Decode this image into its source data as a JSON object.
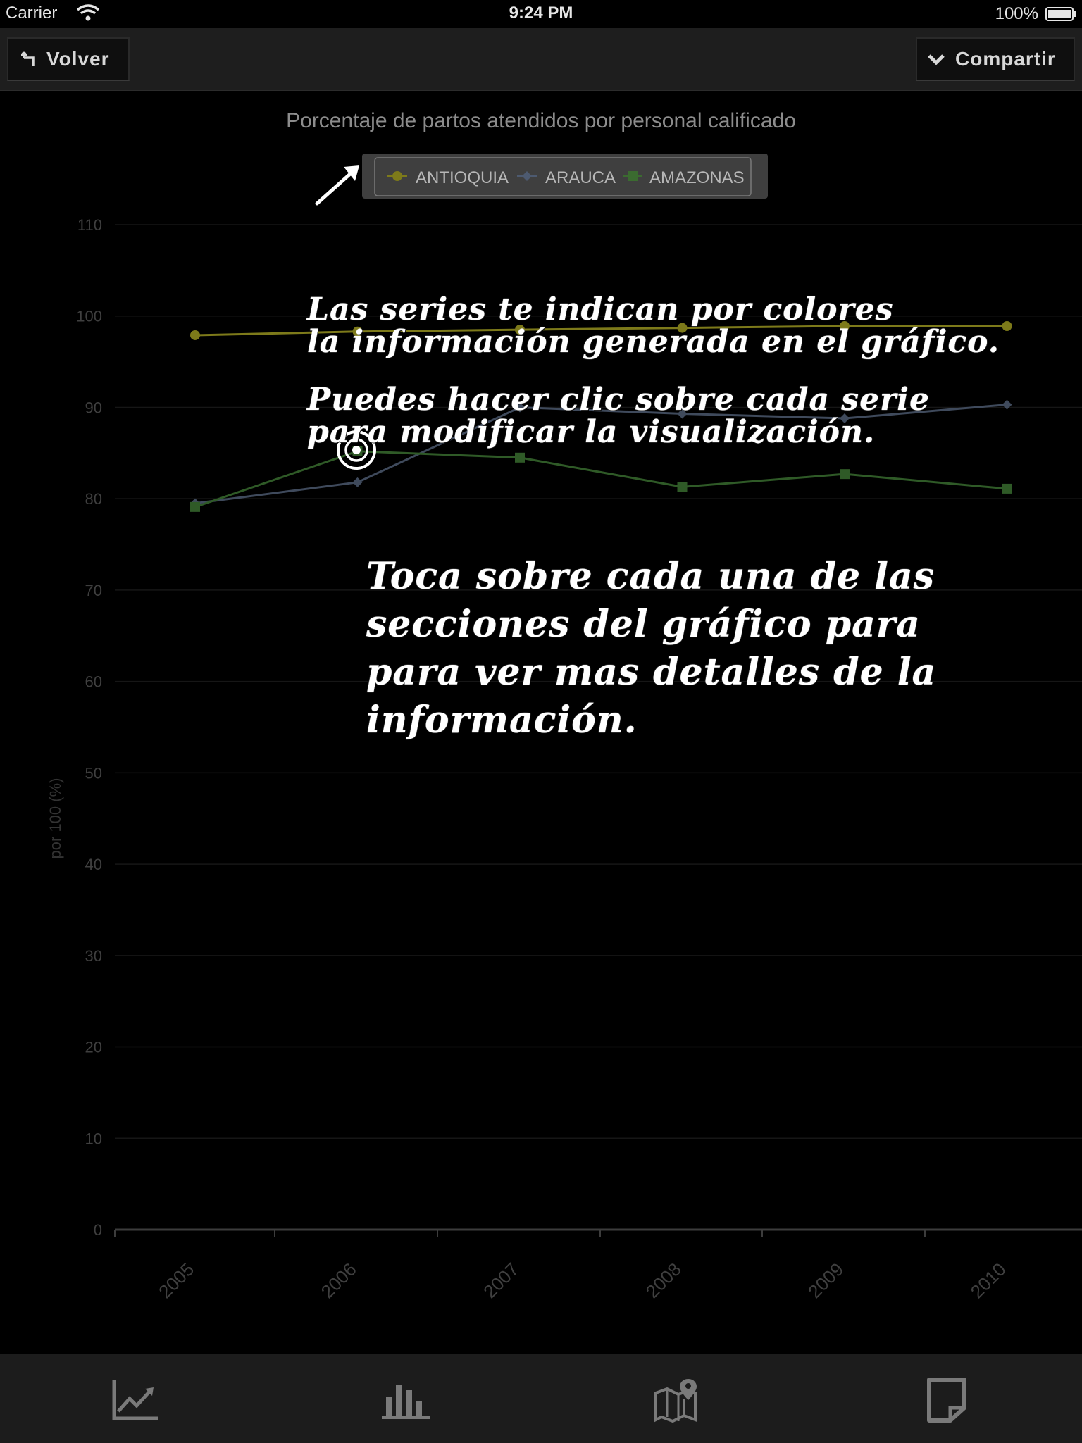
{
  "status_bar": {
    "carrier": "Carrier",
    "time": "9:24 PM",
    "battery": "100%"
  },
  "nav": {
    "back_label": "Volver",
    "share_label": "Compartir"
  },
  "chart_data": {
    "type": "line",
    "title": "Porcentaje de partos atendidos por personal calificado",
    "ylabel": "por 100 (%)",
    "xlabel": "",
    "x": [
      "2005",
      "2006",
      "2007",
      "2008",
      "2009",
      "2010"
    ],
    "ylim": [
      0,
      110
    ],
    "yticks": [
      0,
      10,
      20,
      30,
      40,
      50,
      60,
      70,
      80,
      90,
      100,
      110
    ],
    "grid": true,
    "legend_position": "top-center",
    "series": [
      {
        "name": "ANTIOQUIA",
        "marker": "circle",
        "color": "#7d7a1a",
        "values": [
          97.9,
          98.3,
          98.5,
          98.7,
          98.9,
          98.9
        ]
      },
      {
        "name": "ARAUCA",
        "marker": "diamond",
        "color": "#3f4a5c",
        "values": [
          79.5,
          81.8,
          90.0,
          89.3,
          88.8,
          90.3
        ]
      },
      {
        "name": "AMAZONAS",
        "marker": "square",
        "color": "#2f5a27",
        "values": [
          79.1,
          85.2,
          84.5,
          81.3,
          82.7,
          81.1
        ]
      }
    ]
  },
  "hints": {
    "series": "Las series te indican por colores\nla información generada en el gráfico.",
    "click": "Puedes hacer clic sobre cada serie\npara modificar la visualización.",
    "touch": "Toca sobre cada una de las\nsecciones del gráfico para\npara ver mas detalles de la\ninformación."
  },
  "tabs": [
    {
      "icon": "line-chart-icon"
    },
    {
      "icon": "bar-chart-icon"
    },
    {
      "icon": "map-pin-icon"
    },
    {
      "icon": "note-icon"
    }
  ]
}
